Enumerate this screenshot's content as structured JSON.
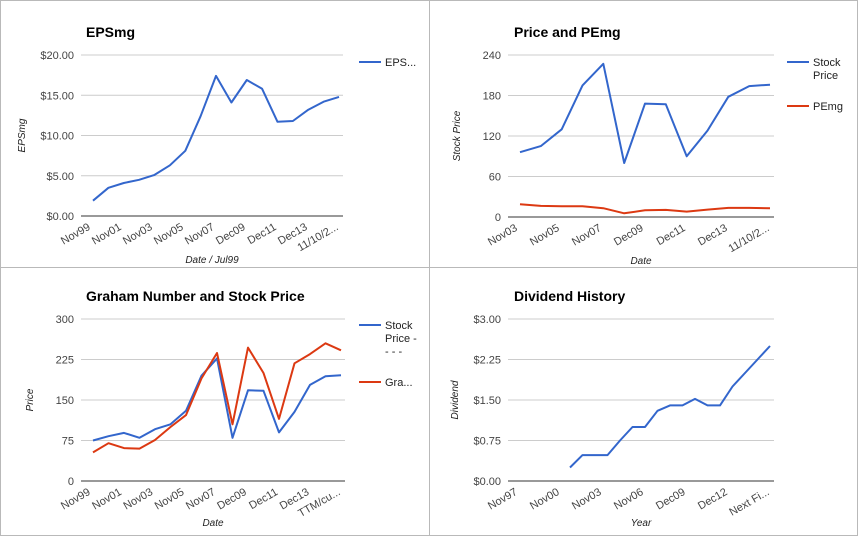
{
  "chart_data": [
    {
      "type": "line",
      "title": "EPSmg",
      "xlabel": "Date / Jul99",
      "ylabel": "EPSmg",
      "ylim": [
        0,
        20
      ],
      "y_ticks": [
        "$0.00",
        "$5.00",
        "$10.00",
        "$15.00",
        "$20.00"
      ],
      "x_ticks": [
        "Nov99",
        "Nov01",
        "Nov03",
        "Nov05",
        "Nov07",
        "Dec09",
        "Dec11",
        "Dec13",
        "11/10/2..."
      ],
      "grid": true,
      "legend_position": "right",
      "series": [
        {
          "name": "EPS...",
          "color": "#3366cc",
          "values": [
            1.9,
            3.5,
            4.1,
            4.5,
            5.1,
            6.3,
            8.1,
            12.4,
            17.4,
            14.1,
            16.9,
            15.8,
            11.7,
            11.8,
            13.2,
            14.2,
            14.8
          ]
        }
      ]
    },
    {
      "type": "line",
      "title": "Price and PEmg",
      "xlabel": "Date",
      "ylabel": "Stock Price",
      "ylim": [
        0,
        240
      ],
      "y_ticks": [
        "0",
        "60",
        "120",
        "180",
        "240"
      ],
      "x_ticks": [
        "Nov03",
        "Nov05",
        "Nov07",
        "Dec09",
        "Dec11",
        "Dec13",
        "11/10/2..."
      ],
      "grid": true,
      "legend_position": "right",
      "series": [
        {
          "name": "Stock Price",
          "color": "#3366cc",
          "values": [
            96,
            105,
            130,
            195,
            227,
            80,
            168,
            167,
            90,
            128,
            178,
            194,
            196
          ]
        },
        {
          "name": "PEmg",
          "color": "#dc3912",
          "values": [
            19,
            16.5,
            16,
            16,
            13,
            5.5,
            10,
            10.5,
            8,
            11,
            13.5,
            13.5,
            13
          ]
        }
      ]
    },
    {
      "type": "line",
      "title": "Graham Number and Stock Price",
      "xlabel": "Date",
      "ylabel": "Price",
      "ylim": [
        0,
        300
      ],
      "y_ticks": [
        "0",
        "75",
        "150",
        "225",
        "300"
      ],
      "x_ticks": [
        "Nov99",
        "Nov01",
        "Nov03",
        "Nov05",
        "Nov07",
        "Dec09",
        "Dec11",
        "Dec13",
        "TTM/cu..."
      ],
      "grid": true,
      "legend_position": "right",
      "series": [
        {
          "name": "Stock Price - - - -",
          "color": "#3366cc",
          "values": [
            75,
            83,
            89,
            80,
            96,
            105,
            130,
            195,
            227,
            80,
            168,
            167,
            90,
            128,
            178,
            194,
            196
          ]
        },
        {
          "name": "Gra...",
          "color": "#dc3912",
          "values": [
            53,
            70,
            61,
            60,
            76,
            100,
            122,
            190,
            237,
            105,
            247,
            200,
            115,
            218,
            235,
            255,
            242
          ]
        }
      ]
    },
    {
      "type": "line",
      "title": "Dividend History",
      "xlabel": "Year",
      "ylabel": "Dividend",
      "ylim": [
        0,
        3
      ],
      "y_ticks": [
        "$0.00",
        "$0.75",
        "$1.50",
        "$2.25",
        "$3.00"
      ],
      "x_ticks": [
        "Nov97",
        "Nov00",
        "Nov03",
        "Nov06",
        "Dec09",
        "Dec12",
        "Next Fi..."
      ],
      "grid": true,
      "legend_position": "none",
      "series": [
        {
          "name": "",
          "color": "#3366cc",
          "values": [
            null,
            null,
            null,
            null,
            0.25,
            0.48,
            0.48,
            0.48,
            0.75,
            1.0,
            1.0,
            1.3,
            1.4,
            1.4,
            1.52,
            1.4,
            1.4,
            1.75,
            2.0,
            2.25,
            2.5
          ]
        }
      ]
    }
  ]
}
